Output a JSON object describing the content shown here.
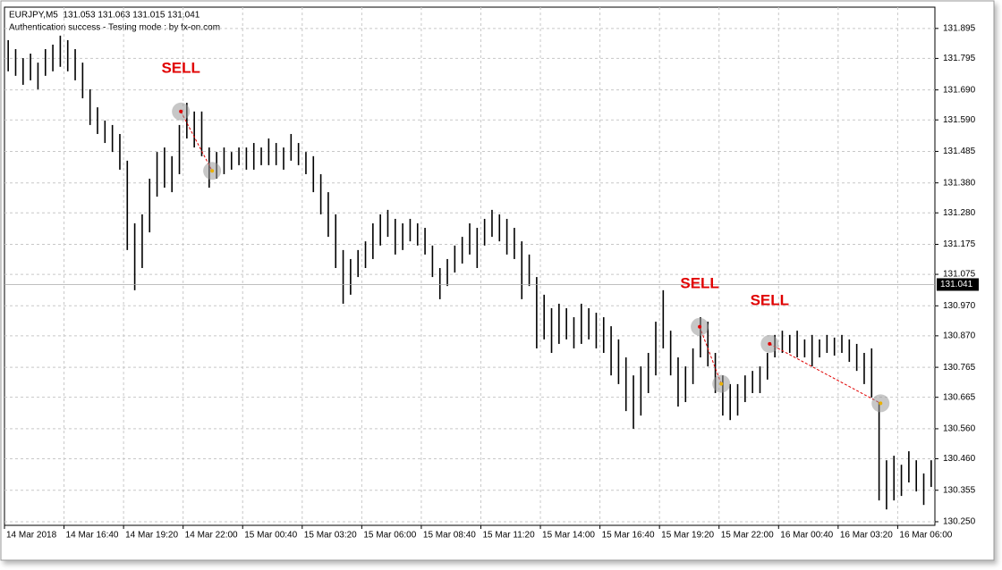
{
  "chart_data": {
    "type": "ohlc",
    "title": "EURJPY,M5  131.053 131.063 131.015 131.041",
    "subtitle": "Authentication success - Testing mode : by fx-on.com",
    "color": "#000000",
    "grid": true,
    "current_price": 131.041,
    "xlim": [
      0,
      125
    ],
    "xticks": [
      {
        "value": 0,
        "label": "14 Mar 2018"
      },
      {
        "value": 8,
        "label": "14 Mar 16:40"
      },
      {
        "value": 16,
        "label": "14 Mar 19:20"
      },
      {
        "value": 24,
        "label": "14 Mar 22:00"
      },
      {
        "value": 32,
        "label": "15 Mar 00:40"
      },
      {
        "value": 40,
        "label": "15 Mar 03:20"
      },
      {
        "value": 48,
        "label": "15 Mar 06:00"
      },
      {
        "value": 56,
        "label": "15 Mar 08:40"
      },
      {
        "value": 64,
        "label": "15 Mar 11:20"
      },
      {
        "value": 72,
        "label": "15 Mar 14:00"
      },
      {
        "value": 80,
        "label": "15 Mar 16:40"
      },
      {
        "value": 88,
        "label": "15 Mar 19:20"
      },
      {
        "value": 96,
        "label": "15 Mar 22:00"
      },
      {
        "value": 104,
        "label": "16 Mar 00:40"
      },
      {
        "value": 112,
        "label": "16 Mar 03:20"
      },
      {
        "value": 120,
        "label": "16 Mar 06:00"
      }
    ],
    "ylim": [
      130.238,
      131.966
    ],
    "yticks": [
      131.895,
      131.795,
      {
        "value": 131.69,
        "label": "131.690"
      },
      {
        "value": 131.59,
        "label": "131.590"
      },
      131.485,
      {
        "value": 131.38,
        "label": "131.380"
      },
      {
        "value": 131.28,
        "label": "131.280"
      },
      131.175,
      131.075,
      {
        "value": 130.97,
        "label": "130.970"
      },
      {
        "value": 130.87,
        "label": "130.870"
      },
      130.765,
      130.665,
      {
        "value": 130.56,
        "label": "130.560"
      },
      {
        "value": 130.46,
        "label": "130.460"
      },
      130.355,
      {
        "value": 130.25,
        "label": "130.250"
      }
    ],
    "high": [
      131.856,
      131.826,
      131.796,
      131.811,
      131.781,
      131.826,
      131.841,
      131.871,
      131.856,
      131.826,
      131.781,
      131.692,
      131.632,
      131.588,
      131.573,
      131.543,
      131.454,
      131.245,
      131.275,
      131.394,
      131.483,
      131.498,
      131.469,
      131.573,
      131.647,
      131.618,
      131.618,
      131.498,
      131.483,
      131.498,
      131.483,
      131.498,
      131.498,
      131.513,
      131.498,
      131.528,
      131.513,
      131.498,
      131.543,
      131.513,
      131.483,
      131.469,
      131.409,
      131.349,
      131.275,
      131.156,
      131.126,
      131.156,
      131.185,
      131.245,
      131.275,
      131.29,
      131.26,
      131.245,
      131.26,
      131.245,
      131.23,
      131.171,
      131.096,
      131.126,
      131.171,
      131.2,
      131.245,
      131.23,
      131.26,
      131.29,
      131.275,
      131.26,
      131.23,
      131.185,
      131.141,
      131.066,
      131.007,
      130.962,
      130.977,
      130.962,
      130.932,
      130.977,
      130.962,
      130.947,
      130.932,
      130.902,
      130.858,
      130.798,
      130.738,
      130.768,
      130.813,
      130.917,
      131.022,
      130.887,
      130.798,
      130.768,
      130.828,
      130.932,
      130.917,
      130.813,
      130.738,
      130.709,
      130.709,
      130.738,
      130.753,
      130.768,
      130.813,
      130.873,
      130.887,
      130.873,
      130.887,
      130.858,
      130.873,
      130.858,
      130.873,
      130.864,
      130.873,
      130.858,
      130.843,
      130.813,
      130.828,
      130.649,
      130.455,
      130.47,
      130.44,
      130.485,
      130.455,
      130.411,
      130.455
    ],
    "low": [
      131.752,
      131.737,
      131.707,
      131.722,
      131.692,
      131.737,
      131.752,
      131.767,
      131.752,
      131.722,
      131.662,
      131.573,
      131.543,
      131.513,
      131.483,
      131.424,
      131.156,
      131.022,
      131.096,
      131.215,
      131.334,
      131.364,
      131.349,
      131.409,
      131.528,
      131.498,
      131.469,
      131.364,
      131.394,
      131.409,
      131.424,
      131.439,
      131.424,
      131.424,
      131.439,
      131.439,
      131.439,
      131.424,
      131.454,
      131.439,
      131.409,
      131.349,
      131.275,
      131.2,
      131.096,
      130.977,
      131.007,
      131.066,
      131.096,
      131.126,
      131.171,
      131.2,
      131.141,
      131.156,
      131.185,
      131.171,
      131.141,
      131.066,
      130.992,
      131.036,
      131.081,
      131.111,
      131.141,
      131.096,
      131.171,
      131.2,
      131.185,
      131.141,
      131.126,
      130.992,
      131.036,
      130.828,
      130.858,
      130.813,
      130.843,
      130.858,
      130.828,
      130.843,
      130.858,
      130.828,
      130.813,
      130.738,
      130.709,
      130.619,
      130.56,
      130.604,
      130.679,
      130.738,
      130.828,
      130.738,
      130.634,
      130.649,
      130.709,
      130.798,
      130.768,
      130.679,
      130.604,
      130.589,
      130.604,
      130.649,
      130.679,
      130.679,
      130.724,
      130.798,
      130.813,
      130.813,
      130.798,
      130.798,
      130.768,
      130.798,
      130.813,
      130.804,
      130.813,
      130.783,
      130.753,
      130.709,
      130.664,
      130.321,
      130.291,
      130.321,
      130.336,
      130.381,
      130.351,
      130.306,
      130.366
    ],
    "trade_color": "#e00000",
    "trades": [
      {
        "label": "SELL",
        "entry_x": 23.7,
        "entry_price": 131.618,
        "exit_x": 27.9,
        "exit_price": 131.42
      },
      {
        "label": "SELL",
        "entry_x": 93.4,
        "entry_price": 130.9,
        "exit_x": 96.3,
        "exit_price": 130.71
      },
      {
        "label": "SELL",
        "entry_x": 102.8,
        "entry_price": 130.843,
        "exit_x": 117.7,
        "exit_price": 130.645
      }
    ]
  }
}
